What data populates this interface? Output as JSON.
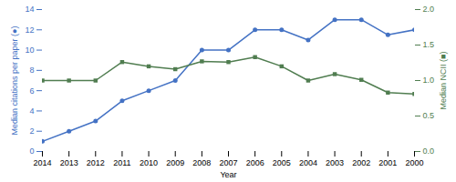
{
  "chart_data": {
    "type": "line",
    "xlabel": "Year",
    "ylabel": "Median citations per paper (●)",
    "y2label": "Median NCII (■)",
    "x": [
      2014,
      2013,
      2012,
      2011,
      2010,
      2009,
      2008,
      2007,
      2006,
      2005,
      2004,
      2003,
      2002,
      2001,
      2000
    ],
    "xlim": [
      2014,
      2000
    ],
    "xticks": [
      2014,
      2013,
      2012,
      2011,
      2010,
      2009,
      2008,
      2007,
      2006,
      2005,
      2004,
      2003,
      2002,
      2001,
      2000
    ],
    "ylim": [
      0,
      14
    ],
    "yticks": [
      0,
      2,
      4,
      6,
      8,
      10,
      12,
      14
    ],
    "y2lim": [
      0.0,
      2.0
    ],
    "y2ticks": [
      {
        "value": 0.0,
        "label": "0.0"
      },
      0.5,
      {
        "value": 1.0,
        "label": "1.0"
      },
      1.5,
      {
        "value": 2.0,
        "label": "2.0"
      }
    ],
    "series": [
      {
        "color": "#4472C4",
        "marker": "circle",
        "axis": "y",
        "values": [
          1,
          2,
          3,
          5,
          6,
          7,
          10,
          10,
          12,
          12,
          11,
          13,
          13,
          11.5,
          12
        ]
      },
      {
        "color": "#507D50",
        "marker": "square",
        "axis": "y2",
        "values": [
          1.0,
          1.0,
          1.0,
          1.26,
          1.2,
          1.16,
          1.27,
          1.26,
          1.33,
          1.2,
          1.0,
          1.09,
          1.01,
          0.83,
          0.81
        ]
      }
    ]
  }
}
